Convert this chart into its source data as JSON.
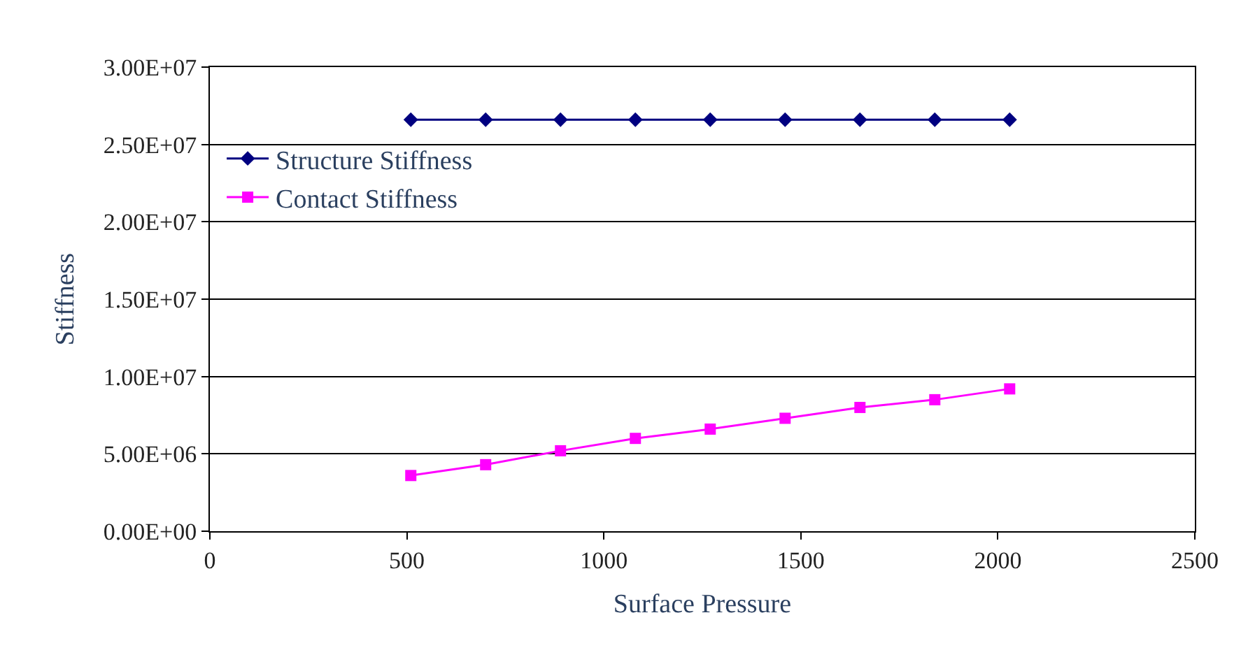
{
  "chart_data": {
    "type": "line",
    "xlabel": "Surface Pressure",
    "ylabel": "Stiffness",
    "x": [
      510,
      700,
      890,
      1080,
      1270,
      1460,
      1650,
      1840,
      2030
    ],
    "series": [
      {
        "name": "Structure Stiffness",
        "color": "#000080",
        "marker": "diamond",
        "values": [
          26600000,
          26600000,
          26600000,
          26600000,
          26600000,
          26600000,
          26600000,
          26600000,
          26600000
        ]
      },
      {
        "name": "Contact Stiffness",
        "color": "#ff00ff",
        "marker": "square",
        "values": [
          3600000,
          4300000,
          5200000,
          6000000,
          6600000,
          7300000,
          8000000,
          8500000,
          9200000
        ]
      }
    ],
    "xlim": [
      0,
      2500
    ],
    "xticks": [
      0,
      500,
      1000,
      1500,
      2000,
      2500
    ],
    "ylim": [
      0,
      30000000
    ],
    "yticks": [
      {
        "value": 0,
        "label": "0.00E+00"
      },
      {
        "value": 5000000,
        "label": "5.00E+06"
      },
      {
        "value": 10000000,
        "label": "1.00E+07"
      },
      {
        "value": 15000000,
        "label": "1.50E+07"
      },
      {
        "value": 20000000,
        "label": "2.00E+07"
      },
      {
        "value": 25000000,
        "label": "2.50E+07"
      },
      {
        "value": 30000000,
        "label": "3.00E+07"
      }
    ],
    "grid": "y",
    "legend": "top left",
    "line_style": "solid"
  }
}
